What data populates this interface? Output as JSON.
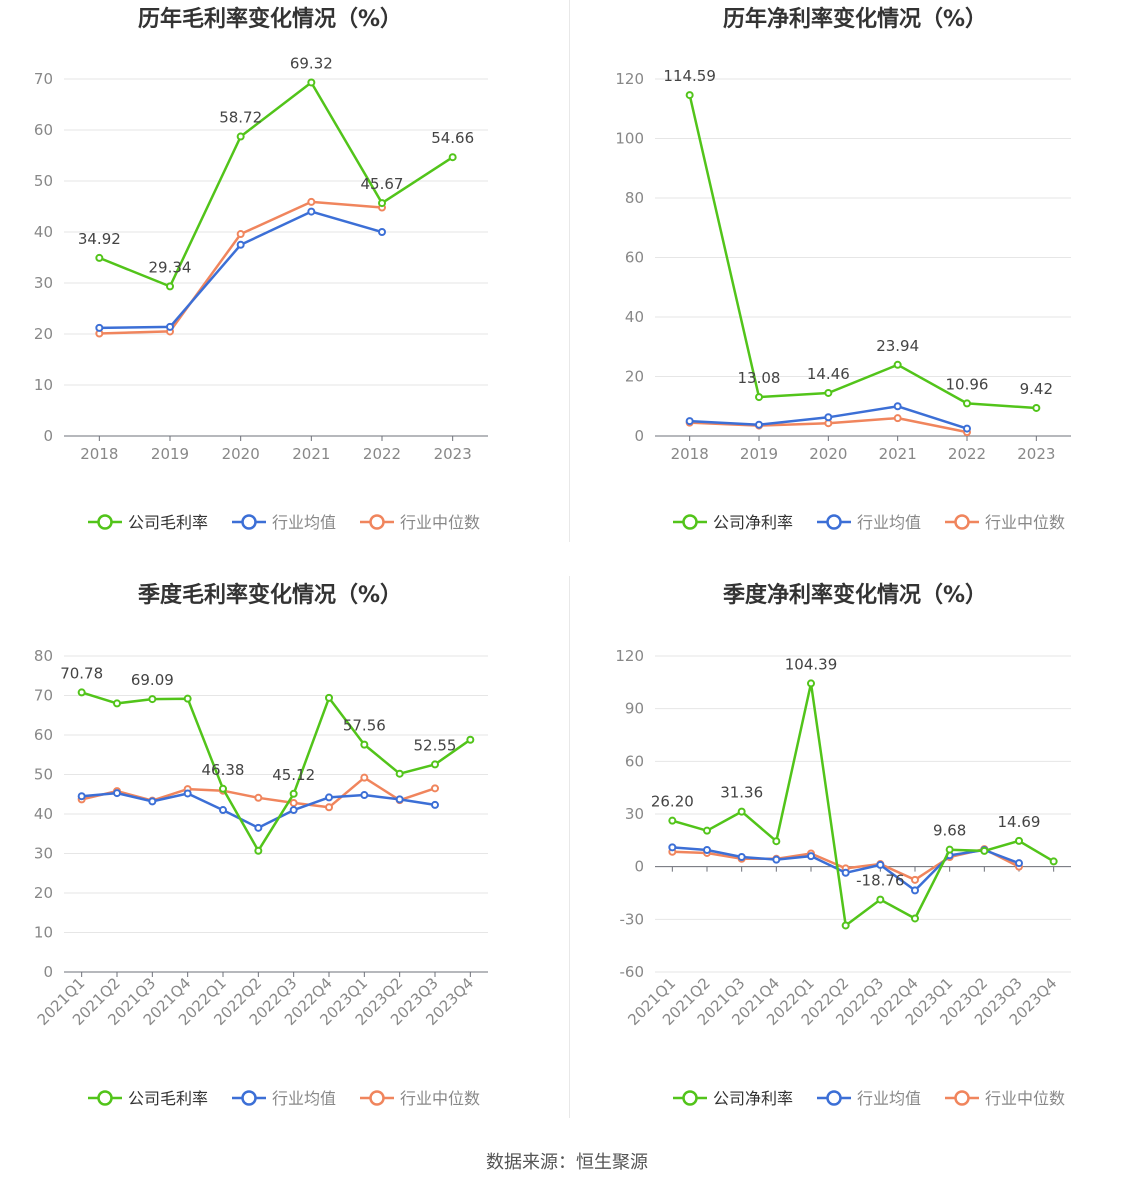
{
  "footer": {
    "source_label": "数据来源：",
    "source_value": "恒生聚源"
  },
  "colors": {
    "company": "#52c41a",
    "industry_avg": "#3c6fd6",
    "industry_median": "#f0855d"
  },
  "chart_data": [
    {
      "type": "line",
      "title": "历年毛利率变化情况（%）",
      "categories": [
        "2018",
        "2019",
        "2020",
        "2021",
        "2022",
        "2023"
      ],
      "ylim": [
        0,
        70
      ],
      "yticks": [
        0,
        10,
        20,
        30,
        40,
        50,
        60,
        70
      ],
      "grid": true,
      "legend_position": "bottom",
      "series": [
        {
          "name": "公司毛利率",
          "values": [
            34.92,
            29.34,
            58.72,
            69.32,
            45.67,
            54.66
          ],
          "labels": [
            "34.92",
            "29.34",
            "58.72",
            "69.32",
            "45.67",
            "54.66"
          ]
        },
        {
          "name": "行业均值",
          "values": [
            21.2,
            21.4,
            37.5,
            44.0,
            40.0,
            null
          ]
        },
        {
          "name": "行业中位数",
          "values": [
            20.1,
            20.5,
            39.6,
            45.9,
            44.8,
            null
          ]
        }
      ]
    },
    {
      "type": "line",
      "title": "历年净利率变化情况（%）",
      "categories": [
        "2018",
        "2019",
        "2020",
        "2021",
        "2022",
        "2023"
      ],
      "ylim": [
        0,
        120
      ],
      "yticks": [
        0,
        20,
        40,
        60,
        80,
        100,
        120
      ],
      "grid": true,
      "legend_position": "bottom",
      "series": [
        {
          "name": "公司净利率",
          "values": [
            114.59,
            13.08,
            14.46,
            23.94,
            10.96,
            9.42
          ],
          "labels": [
            "114.59",
            "13.08",
            "14.46",
            "23.94",
            "10.96",
            "9.42"
          ]
        },
        {
          "name": "行业均值",
          "values": [
            5.0,
            3.8,
            6.3,
            10.0,
            2.5,
            null
          ]
        },
        {
          "name": "行业中位数",
          "values": [
            4.5,
            3.5,
            4.3,
            6.0,
            1.3,
            null
          ]
        }
      ]
    },
    {
      "type": "line",
      "title": "季度毛利率变化情况（%）",
      "categories": [
        "2021Q1",
        "2021Q2",
        "2021Q3",
        "2021Q4",
        "2022Q1",
        "2022Q2",
        "2022Q3",
        "2022Q4",
        "2023Q1",
        "2023Q2",
        "2023Q3",
        "2023Q4"
      ],
      "ylim": [
        0,
        80
      ],
      "yticks": [
        0,
        10,
        20,
        30,
        40,
        50,
        60,
        70,
        80
      ],
      "grid": true,
      "legend_position": "bottom",
      "series": [
        {
          "name": "公司毛利率",
          "values": [
            70.78,
            68.0,
            69.09,
            69.2,
            46.38,
            30.7,
            45.12,
            69.4,
            57.56,
            50.2,
            52.55,
            58.8
          ],
          "labels": [
            "70.78",
            null,
            "69.09",
            null,
            "46.38",
            null,
            "45.12",
            null,
            "57.56",
            null,
            "52.55",
            null
          ]
        },
        {
          "name": "行业均值",
          "values": [
            44.5,
            45.3,
            43.2,
            45.2,
            41.0,
            36.5,
            41.0,
            44.2,
            44.8,
            43.7,
            42.3,
            null
          ]
        },
        {
          "name": "行业中位数",
          "values": [
            43.7,
            45.8,
            43.4,
            46.3,
            45.9,
            44.1,
            42.8,
            41.7,
            49.2,
            43.5,
            46.5,
            null
          ]
        }
      ]
    },
    {
      "type": "line",
      "title": "季度净利率变化情况（%）",
      "categories": [
        "2021Q1",
        "2021Q2",
        "2021Q3",
        "2021Q4",
        "2022Q1",
        "2022Q2",
        "2022Q3",
        "2022Q4",
        "2023Q1",
        "2023Q2",
        "2023Q3",
        "2023Q4"
      ],
      "ylim": [
        -60,
        120
      ],
      "yticks": [
        -60,
        -30,
        0,
        30,
        60,
        90,
        120
      ],
      "grid": true,
      "legend_position": "bottom",
      "series": [
        {
          "name": "公司净利率",
          "values": [
            26.2,
            20.5,
            31.36,
            14.5,
            104.39,
            -33.5,
            -18.76,
            -29.5,
            9.68,
            9.0,
            14.69,
            3.0
          ],
          "labels": [
            "26.20",
            null,
            "31.36",
            null,
            "104.39",
            null,
            "-18.76",
            null,
            "9.68",
            null,
            "14.69",
            null
          ]
        },
        {
          "name": "行业均值",
          "values": [
            11.0,
            9.5,
            5.5,
            4.0,
            6.0,
            -3.5,
            1.0,
            -13.5,
            6.5,
            9.5,
            2.0,
            null
          ]
        },
        {
          "name": "行业中位数",
          "values": [
            8.5,
            7.8,
            4.5,
            4.5,
            7.5,
            -1.0,
            1.5,
            -7.5,
            5.5,
            10.0,
            0.0,
            null
          ]
        }
      ]
    }
  ]
}
